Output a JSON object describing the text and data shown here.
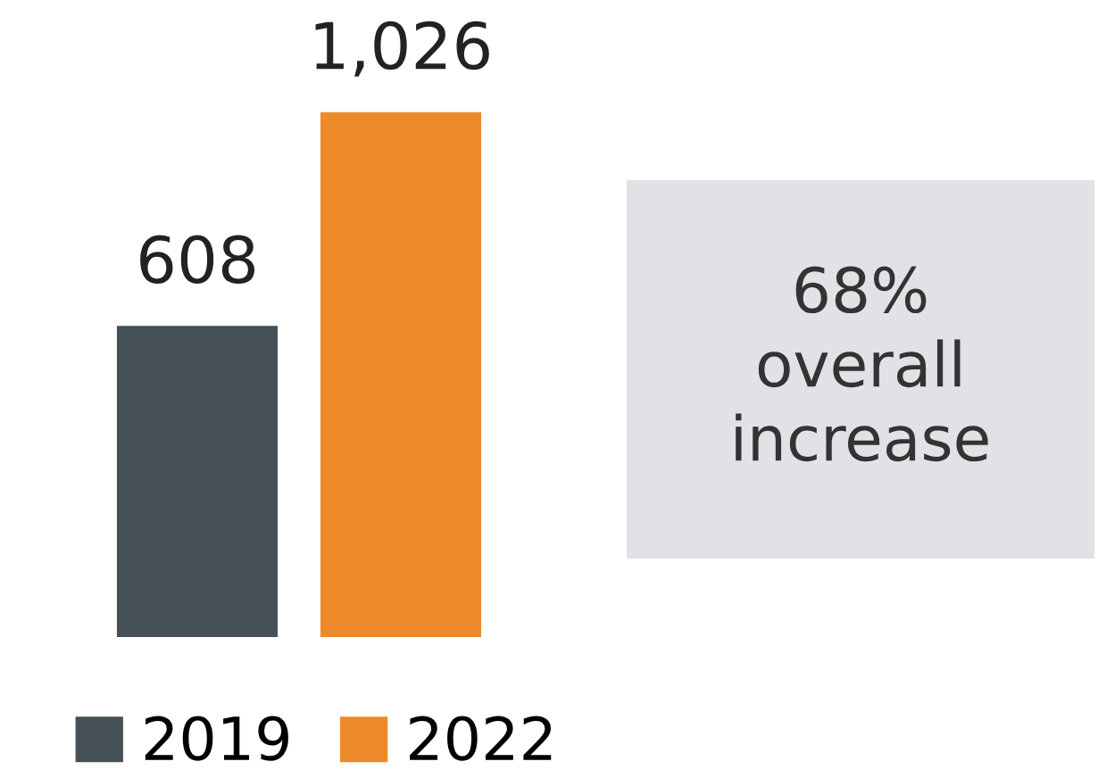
{
  "chart_data": {
    "type": "bar",
    "categories": [
      null
    ],
    "series": [
      {
        "name": "2019",
        "color": "#455157",
        "values": [
          608
        ],
        "value_labels": [
          "608"
        ]
      },
      {
        "name": "2022",
        "color": "#ed8a2b",
        "values": [
          1026
        ],
        "value_labels": [
          "1,026"
        ]
      }
    ],
    "annotations": [
      "68%\noverall\nincrease"
    ],
    "legend": "bottom",
    "grid": false
  }
}
